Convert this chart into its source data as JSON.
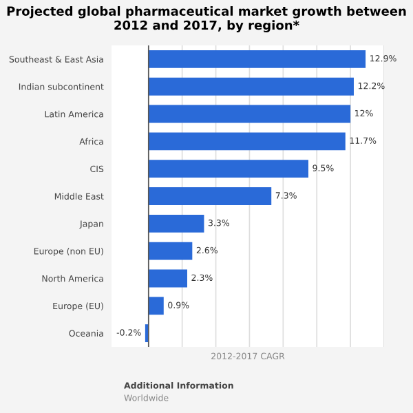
{
  "chart_data": {
    "type": "bar",
    "orientation": "horizontal",
    "title": "Projected global pharmaceutical market growth between 2012 and 2017, by region*",
    "xlabel": "2012-2017 CAGR",
    "categories": [
      "Southeast & East Asia",
      "Indian subcontinent",
      "Latin America",
      "Africa",
      "CIS",
      "Middle East",
      "Japan",
      "Europe (non EU)",
      "North America",
      "Europe (EU)",
      "Oceania"
    ],
    "values": [
      12.9,
      12.2,
      12,
      11.7,
      9.5,
      7.3,
      3.3,
      2.6,
      2.3,
      0.9,
      -0.2
    ],
    "value_labels": [
      "12.9%",
      "12.2%",
      "12%",
      "11.7%",
      "9.5%",
      "7.3%",
      "3.3%",
      "2.6%",
      "2.3%",
      "0.9%",
      "-0.2%"
    ],
    "color": "#2a6ad8",
    "xlim": [
      -2.2,
      14
    ],
    "xticks": [
      {
        "value": 0,
        "label": null
      },
      {
        "value": 2,
        "label": null
      },
      {
        "value": 4,
        "label": null
      },
      {
        "value": 6,
        "label": null
      },
      {
        "value": 8,
        "label": null
      },
      {
        "value": 10,
        "label": null
      },
      {
        "value": 12,
        "label": null
      },
      {
        "value": 14,
        "label": null
      }
    ],
    "grid": "x",
    "tick_labels": "y",
    "annotations": [
      "Additional Information",
      "Worldwide"
    ]
  }
}
